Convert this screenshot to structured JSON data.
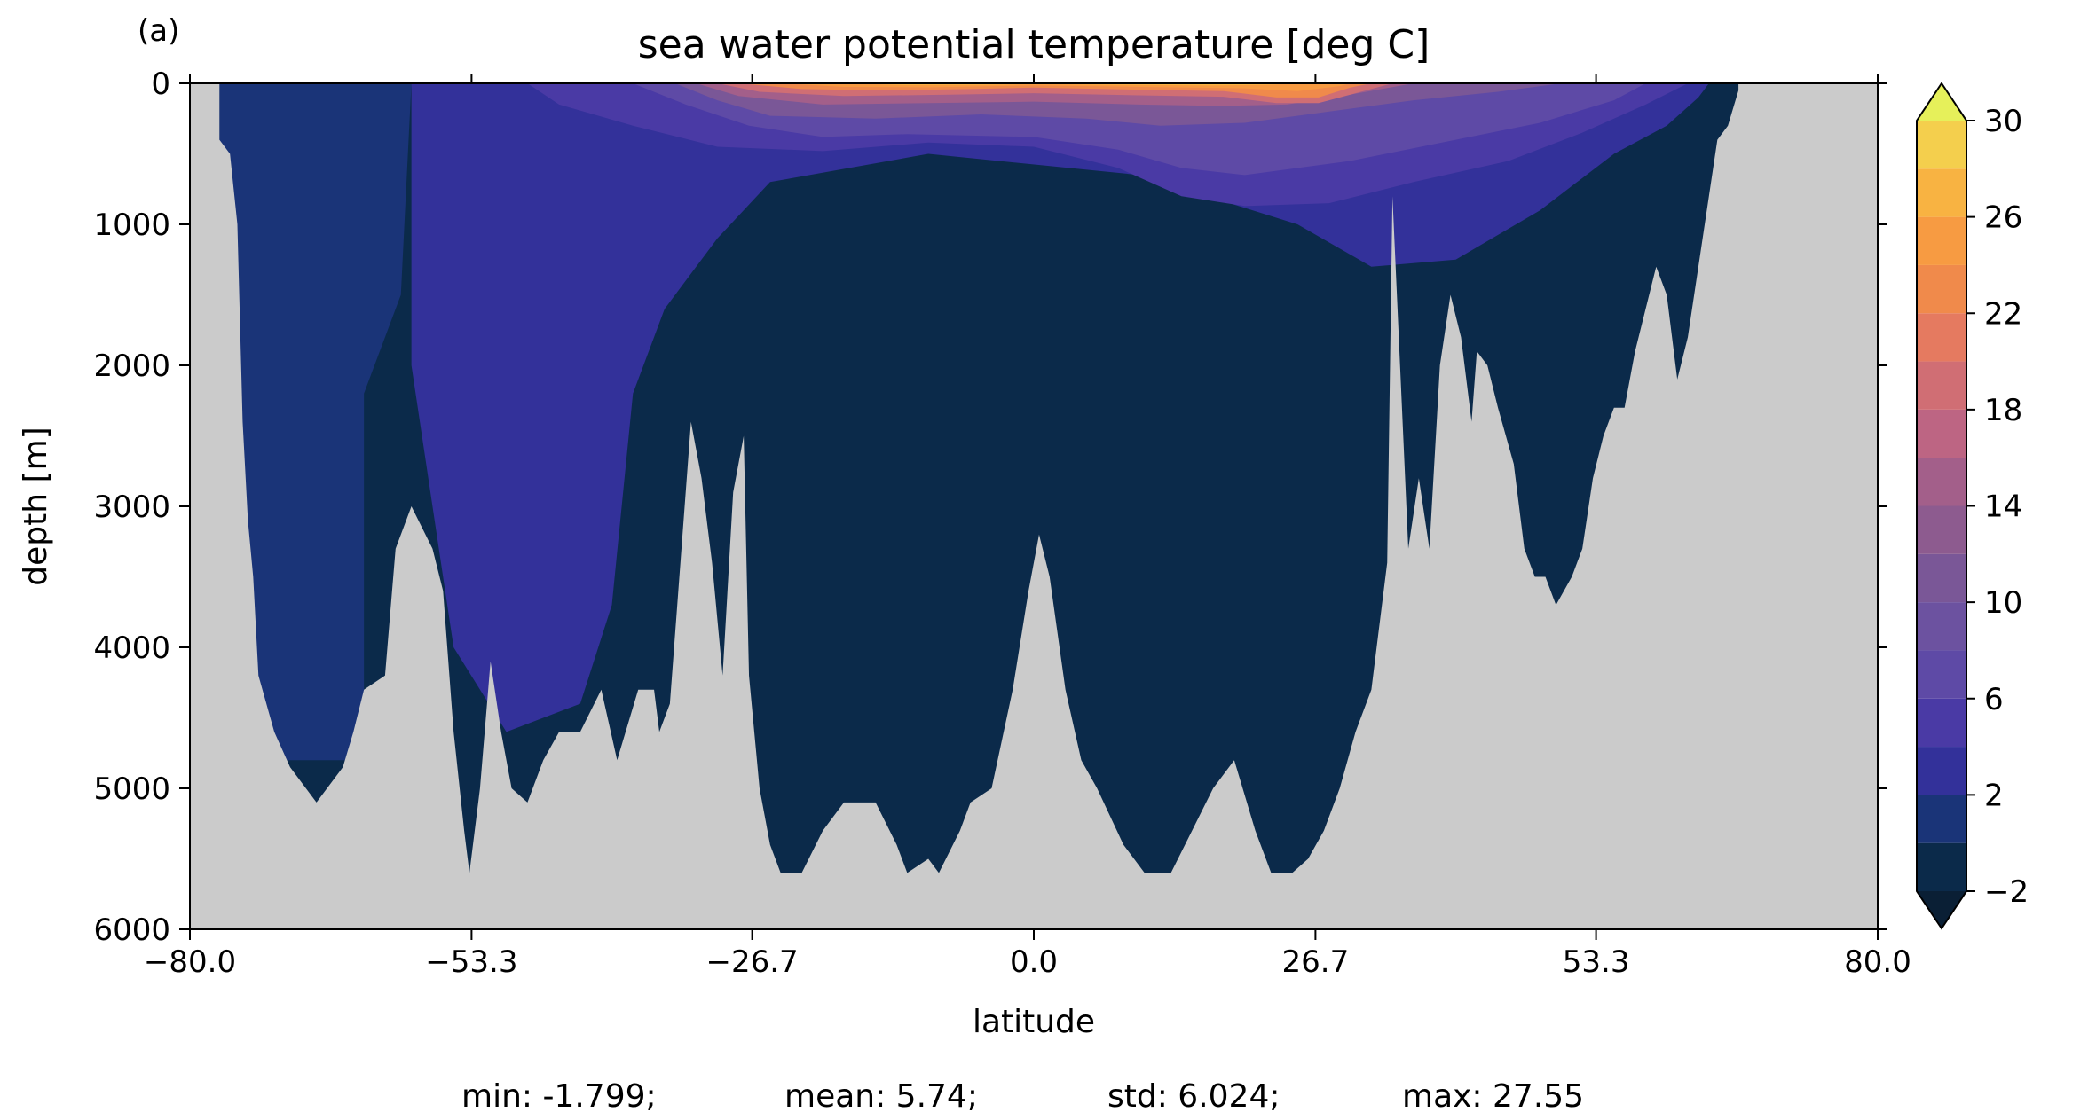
{
  "chart_data": {
    "type": "heatmap",
    "panel_label": "(a)",
    "title": "sea water potential temperature [deg C]",
    "xlabel": "latitude",
    "ylabel": "depth [m]",
    "xlim": [
      -80.0,
      80.0
    ],
    "ylim": [
      6000,
      0
    ],
    "x_ticks": [
      -80.0,
      -53.3,
      -26.7,
      0.0,
      26.7,
      53.3,
      80.0
    ],
    "x_tick_labels": [
      "−80.0",
      "−53.3",
      "−26.7",
      "0.0",
      "26.7",
      "53.3",
      "80.0"
    ],
    "y_ticks": [
      0,
      1000,
      2000,
      3000,
      4000,
      5000,
      6000
    ],
    "y_tick_labels": [
      "0",
      "1000",
      "2000",
      "3000",
      "4000",
      "5000",
      "6000"
    ],
    "missing_color": "#cbcbcb",
    "colorbar": {
      "levels": [
        -2,
        0,
        2,
        4,
        6,
        8,
        10,
        12,
        14,
        16,
        18,
        20,
        22,
        24,
        26,
        28,
        30
      ],
      "tick_values": [
        -2,
        2,
        6,
        10,
        14,
        18,
        22,
        26,
        30
      ],
      "tick_labels": [
        "−2",
        "2",
        "6",
        "10",
        "14",
        "18",
        "22",
        "26",
        "30"
      ],
      "colors": [
        "#0b2a4a",
        "#1a3478",
        "#33319a",
        "#4a3aa5",
        "#5e4aa6",
        "#6c52a0",
        "#7a5797",
        "#8d5b8f",
        "#a35f8a",
        "#bd6583",
        "#d06e74",
        "#e57a60",
        "#f08a4b",
        "#f79b42",
        "#f8b342",
        "#f4cf4d"
      ],
      "under_color": "#0a1f35",
      "over_color": "#e6f05a",
      "extend": "both"
    },
    "bottom_profile": [
      [
        -80,
        0
      ],
      [
        -77.2,
        0
      ],
      [
        -77.2,
        400
      ],
      [
        -76.2,
        500
      ],
      [
        -75.5,
        1000
      ],
      [
        -75,
        2400
      ],
      [
        -74.5,
        3100
      ],
      [
        -74,
        3500
      ],
      [
        -73.5,
        4200
      ],
      [
        -72,
        4600
      ],
      [
        -70.5,
        4850
      ],
      [
        -68,
        5100
      ],
      [
        -65.5,
        4850
      ],
      [
        -64.5,
        4600
      ],
      [
        -63.5,
        4300
      ],
      [
        -61.5,
        4200
      ],
      [
        -60.5,
        3300
      ],
      [
        -59,
        3000
      ],
      [
        -57,
        3300
      ],
      [
        -56,
        3600
      ],
      [
        -55,
        4600
      ],
      [
        -54,
        5300
      ],
      [
        -53.5,
        5600
      ],
      [
        -52.5,
        5000
      ],
      [
        -51.5,
        4100
      ],
      [
        -50.5,
        4600
      ],
      [
        -49.5,
        5000
      ],
      [
        -48,
        5100
      ],
      [
        -46.5,
        4800
      ],
      [
        -45,
        4600
      ],
      [
        -43,
        4600
      ],
      [
        -41,
        4300
      ],
      [
        -39.5,
        4800
      ],
      [
        -37.5,
        4300
      ],
      [
        -36,
        4300
      ],
      [
        -35.5,
        4600
      ],
      [
        -34.5,
        4400
      ],
      [
        -33.5,
        3400
      ],
      [
        -32.5,
        2400
      ],
      [
        -31.5,
        2800
      ],
      [
        -30.5,
        3400
      ],
      [
        -29.5,
        4200
      ],
      [
        -28.5,
        2900
      ],
      [
        -27.5,
        2500
      ],
      [
        -27,
        4200
      ],
      [
        -26,
        5000
      ],
      [
        -25,
        5400
      ],
      [
        -24,
        5600
      ],
      [
        -22,
        5600
      ],
      [
        -20,
        5300
      ],
      [
        -18,
        5100
      ],
      [
        -15,
        5100
      ],
      [
        -13,
        5400
      ],
      [
        -12,
        5600
      ],
      [
        -10,
        5500
      ],
      [
        -9,
        5600
      ],
      [
        -7,
        5300
      ],
      [
        -6,
        5100
      ],
      [
        -4,
        5000
      ],
      [
        -2,
        4300
      ],
      [
        -0.5,
        3600
      ],
      [
        0.5,
        3200
      ],
      [
        1.5,
        3500
      ],
      [
        3,
        4300
      ],
      [
        4.5,
        4800
      ],
      [
        6,
        5000
      ],
      [
        8.5,
        5400
      ],
      [
        10.5,
        5600
      ],
      [
        13,
        5600
      ],
      [
        15,
        5300
      ],
      [
        17,
        5000
      ],
      [
        19,
        4800
      ],
      [
        21,
        5300
      ],
      [
        22.5,
        5600
      ],
      [
        24.5,
        5600
      ],
      [
        26,
        5500
      ],
      [
        27.5,
        5300
      ],
      [
        29,
        5000
      ],
      [
        30.5,
        4600
      ],
      [
        32,
        4300
      ],
      [
        33.5,
        3400
      ],
      [
        34,
        800
      ],
      [
        35.5,
        3300
      ],
      [
        36.5,
        2800
      ],
      [
        37.5,
        3300
      ],
      [
        38.5,
        2000
      ],
      [
        39.5,
        1500
      ],
      [
        40.5,
        1800
      ],
      [
        41.5,
        2400
      ],
      [
        42,
        1900
      ],
      [
        43,
        2000
      ],
      [
        44,
        2300
      ],
      [
        45.5,
        2700
      ],
      [
        46.5,
        3300
      ],
      [
        47.5,
        3500
      ],
      [
        48.5,
        3500
      ],
      [
        49.5,
        3700
      ],
      [
        51,
        3500
      ],
      [
        52,
        3300
      ],
      [
        53,
        2800
      ],
      [
        54,
        2500
      ],
      [
        55,
        2300
      ],
      [
        56,
        2300
      ],
      [
        57,
        1900
      ],
      [
        58,
        1600
      ],
      [
        59,
        1300
      ],
      [
        60,
        1500
      ],
      [
        61,
        2100
      ],
      [
        62,
        1800
      ],
      [
        63,
        1300
      ],
      [
        64,
        800
      ],
      [
        64.8,
        400
      ],
      [
        65.8,
        300
      ],
      [
        66.8,
        50
      ],
      [
        66.8,
        0
      ],
      [
        80,
        0
      ]
    ],
    "isotherms": [
      {
        "level": 0,
        "profile": [
          [
            -77.2,
            0
          ],
          [
            -77.2,
            4800
          ],
          [
            -63.5,
            4800
          ],
          [
            -63.5,
            2200
          ],
          [
            -60,
            1500
          ],
          [
            -59,
            0
          ]
        ]
      },
      {
        "level": 2,
        "profile": [
          [
            -59,
            0
          ],
          [
            -59,
            2000
          ],
          [
            -57,
            3000
          ],
          [
            -55,
            4000
          ],
          [
            -50,
            4600
          ],
          [
            -43,
            4400
          ],
          [
            -40,
            3700
          ],
          [
            -38,
            2200
          ],
          [
            -35,
            1600
          ],
          [
            -30,
            1100
          ],
          [
            -25,
            700
          ],
          [
            -10,
            500
          ],
          [
            10,
            650
          ],
          [
            25,
            1000
          ],
          [
            32,
            1300
          ],
          [
            40,
            1250
          ],
          [
            48,
            900
          ],
          [
            55,
            500
          ],
          [
            60,
            300
          ],
          [
            63,
            100
          ],
          [
            64,
            0
          ]
        ]
      },
      {
        "level": 4,
        "profile": [
          [
            -48,
            0
          ],
          [
            -45,
            150
          ],
          [
            -38,
            300
          ],
          [
            -30,
            450
          ],
          [
            -20,
            480
          ],
          [
            -10,
            420
          ],
          [
            0,
            450
          ],
          [
            8,
            600
          ],
          [
            14,
            800
          ],
          [
            20,
            870
          ],
          [
            28,
            850
          ],
          [
            36,
            700
          ],
          [
            45,
            550
          ],
          [
            52,
            350
          ],
          [
            58,
            150
          ],
          [
            62,
            0
          ]
        ]
      },
      {
        "level": 6,
        "profile": [
          [
            -38,
            0
          ],
          [
            -33,
            150
          ],
          [
            -27,
            300
          ],
          [
            -20,
            380
          ],
          [
            -12,
            360
          ],
          [
            0,
            380
          ],
          [
            8,
            470
          ],
          [
            14,
            600
          ],
          [
            20,
            650
          ],
          [
            30,
            550
          ],
          [
            40,
            400
          ],
          [
            48,
            280
          ],
          [
            55,
            120
          ],
          [
            58,
            0
          ]
        ]
      },
      {
        "level": 10,
        "profile": [
          [
            -34,
            0
          ],
          [
            -30,
            120
          ],
          [
            -25,
            230
          ],
          [
            -15,
            250
          ],
          [
            -5,
            220
          ],
          [
            5,
            250
          ],
          [
            12,
            300
          ],
          [
            20,
            280
          ],
          [
            28,
            200
          ],
          [
            36,
            120
          ],
          [
            44,
            60
          ],
          [
            50,
            0
          ]
        ]
      },
      {
        "level": 14,
        "profile": [
          [
            -32,
            0
          ],
          [
            -28,
            90
          ],
          [
            -20,
            150
          ],
          [
            -10,
            140
          ],
          [
            0,
            130
          ],
          [
            10,
            150
          ],
          [
            18,
            160
          ],
          [
            24,
            150
          ],
          [
            30,
            80
          ],
          [
            36,
            0
          ]
        ]
      },
      {
        "level": 18,
        "profile": [
          [
            -30,
            0
          ],
          [
            -26,
            60
          ],
          [
            -18,
            90
          ],
          [
            -8,
            80
          ],
          [
            0,
            70
          ],
          [
            10,
            85
          ],
          [
            18,
            95
          ],
          [
            23,
            140
          ],
          [
            27,
            140
          ],
          [
            31,
            60
          ],
          [
            34,
            0
          ]
        ]
      },
      {
        "level": 22,
        "profile": [
          [
            -28,
            0
          ],
          [
            -22,
            40
          ],
          [
            -14,
            50
          ],
          [
            -6,
            40
          ],
          [
            0,
            30
          ],
          [
            10,
            45
          ],
          [
            18,
            55
          ],
          [
            23,
            100
          ],
          [
            27,
            100
          ],
          [
            30,
            30
          ],
          [
            32,
            0
          ]
        ]
      },
      {
        "level": 24,
        "profile": [
          [
            -24,
            0
          ],
          [
            -18,
            25
          ],
          [
            -10,
            28
          ],
          [
            0,
            15
          ],
          [
            10,
            25
          ],
          [
            20,
            35
          ],
          [
            25,
            55
          ],
          [
            29,
            20
          ],
          [
            30,
            0
          ]
        ]
      },
      {
        "level": 26,
        "profile": [
          [
            -18,
            0
          ],
          [
            -12,
            12
          ],
          [
            -5,
            10
          ],
          [
            0,
            5
          ],
          [
            8,
            10
          ],
          [
            17,
            15
          ],
          [
            22,
            10
          ],
          [
            26,
            0
          ]
        ]
      }
    ],
    "stats": {
      "min": "min: -1.799;",
      "mean": "mean: 5.74;",
      "std": "std: 6.024;",
      "max": "max: 27.55"
    }
  }
}
